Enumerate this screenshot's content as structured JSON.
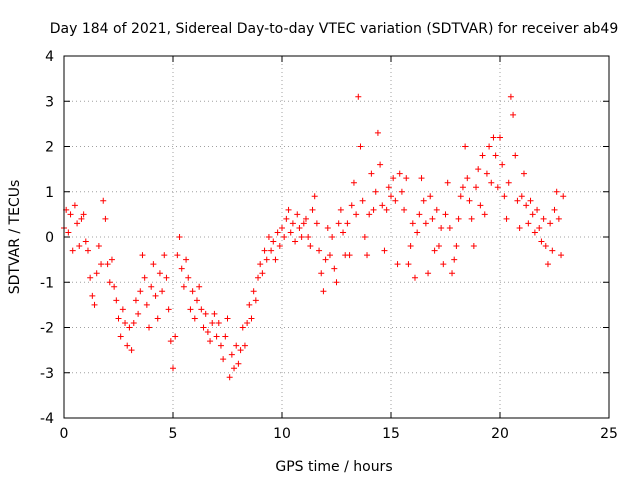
{
  "chart_data": {
    "type": "scatter",
    "title": "Day 184 of 2021, Sidereal Day-to-day VTEC variation (SDTVAR) for receiver ab49",
    "xlabel": "GPS time / hours",
    "ylabel": "SDTVAR / TECUs",
    "xlim": [
      0,
      25
    ],
    "ylim": [
      -4,
      4
    ],
    "xticks": [
      0,
      5,
      10,
      15,
      20,
      25
    ],
    "yticks": [
      -4,
      -3,
      -2,
      -1,
      0,
      1,
      2,
      3,
      4
    ],
    "grid": true,
    "marker": "plus",
    "color": "#ff0000",
    "series": [
      {
        "name": "SDTVAR",
        "points": [
          [
            0.0,
            0.2
          ],
          [
            0.1,
            0.6
          ],
          [
            0.2,
            0.1
          ],
          [
            0.3,
            0.5
          ],
          [
            0.4,
            -0.3
          ],
          [
            0.5,
            0.7
          ],
          [
            0.6,
            0.3
          ],
          [
            0.7,
            -0.2
          ],
          [
            0.8,
            0.4
          ],
          [
            0.9,
            0.5
          ],
          [
            1.0,
            -0.1
          ],
          [
            1.1,
            -0.3
          ],
          [
            1.2,
            -0.9
          ],
          [
            1.3,
            -1.3
          ],
          [
            1.4,
            -1.5
          ],
          [
            1.5,
            -0.8
          ],
          [
            1.6,
            -0.2
          ],
          [
            1.7,
            -0.6
          ],
          [
            1.8,
            0.8
          ],
          [
            1.9,
            0.4
          ],
          [
            2.0,
            -0.6
          ],
          [
            2.1,
            -1.0
          ],
          [
            2.2,
            -0.5
          ],
          [
            2.3,
            -1.1
          ],
          [
            2.4,
            -1.4
          ],
          [
            2.5,
            -1.8
          ],
          [
            2.6,
            -2.2
          ],
          [
            2.7,
            -1.6
          ],
          [
            2.8,
            -1.9
          ],
          [
            2.9,
            -2.4
          ],
          [
            3.0,
            -2.0
          ],
          [
            3.1,
            -2.5
          ],
          [
            3.2,
            -1.9
          ],
          [
            3.3,
            -1.4
          ],
          [
            3.4,
            -1.7
          ],
          [
            3.5,
            -1.2
          ],
          [
            3.6,
            -0.4
          ],
          [
            3.7,
            -0.9
          ],
          [
            3.8,
            -1.5
          ],
          [
            3.9,
            -2.0
          ],
          [
            4.0,
            -1.1
          ],
          [
            4.1,
            -0.6
          ],
          [
            4.2,
            -1.3
          ],
          [
            4.3,
            -1.8
          ],
          [
            4.4,
            -0.8
          ],
          [
            4.5,
            -1.2
          ],
          [
            4.6,
            -0.4
          ],
          [
            4.7,
            -0.9
          ],
          [
            4.8,
            -1.6
          ],
          [
            4.9,
            -2.3
          ],
          [
            5.0,
            -2.9
          ],
          [
            5.1,
            -2.2
          ],
          [
            5.2,
            -0.4
          ],
          [
            5.3,
            0.0
          ],
          [
            5.4,
            -0.7
          ],
          [
            5.5,
            -1.1
          ],
          [
            5.6,
            -0.5
          ],
          [
            5.7,
            -0.9
          ],
          [
            5.8,
            -1.6
          ],
          [
            5.9,
            -1.2
          ],
          [
            6.0,
            -1.8
          ],
          [
            6.1,
            -1.4
          ],
          [
            6.2,
            -1.1
          ],
          [
            6.3,
            -1.6
          ],
          [
            6.4,
            -2.0
          ],
          [
            6.5,
            -1.7
          ],
          [
            6.6,
            -2.1
          ],
          [
            6.7,
            -2.3
          ],
          [
            6.8,
            -1.9
          ],
          [
            6.9,
            -1.7
          ],
          [
            7.0,
            -2.2
          ],
          [
            7.1,
            -1.9
          ],
          [
            7.2,
            -2.4
          ],
          [
            7.3,
            -2.7
          ],
          [
            7.4,
            -2.2
          ],
          [
            7.5,
            -1.8
          ],
          [
            7.6,
            -3.1
          ],
          [
            7.7,
            -2.6
          ],
          [
            7.8,
            -2.9
          ],
          [
            7.9,
            -2.4
          ],
          [
            8.0,
            -2.8
          ],
          [
            8.1,
            -2.5
          ],
          [
            8.2,
            -2.0
          ],
          [
            8.3,
            -2.4
          ],
          [
            8.4,
            -1.9
          ],
          [
            8.5,
            -1.5
          ],
          [
            8.6,
            -1.8
          ],
          [
            8.7,
            -1.2
          ],
          [
            8.8,
            -1.4
          ],
          [
            8.9,
            -0.9
          ],
          [
            9.0,
            -0.6
          ],
          [
            9.1,
            -0.8
          ],
          [
            9.2,
            -0.3
          ],
          [
            9.3,
            -0.5
          ],
          [
            9.4,
            0.0
          ],
          [
            9.5,
            -0.3
          ],
          [
            9.6,
            -0.1
          ],
          [
            9.7,
            -0.5
          ],
          [
            9.8,
            0.1
          ],
          [
            9.9,
            -0.2
          ],
          [
            10.0,
            0.2
          ],
          [
            10.1,
            0.0
          ],
          [
            10.2,
            0.4
          ],
          [
            10.3,
            0.6
          ],
          [
            10.4,
            0.1
          ],
          [
            10.5,
            0.3
          ],
          [
            10.6,
            -0.1
          ],
          [
            10.7,
            0.5
          ],
          [
            10.8,
            0.2
          ],
          [
            10.9,
            0.0
          ],
          [
            11.0,
            0.3
          ],
          [
            11.1,
            0.4
          ],
          [
            11.2,
            0.0
          ],
          [
            11.3,
            -0.2
          ],
          [
            11.4,
            0.6
          ],
          [
            11.5,
            0.9
          ],
          [
            11.6,
            0.3
          ],
          [
            11.7,
            -0.3
          ],
          [
            11.8,
            -0.8
          ],
          [
            11.9,
            -1.2
          ],
          [
            12.0,
            -0.5
          ],
          [
            12.1,
            0.2
          ],
          [
            12.2,
            -0.4
          ],
          [
            12.3,
            0.0
          ],
          [
            12.4,
            -0.7
          ],
          [
            12.5,
            -1.0
          ],
          [
            12.6,
            0.3
          ],
          [
            12.7,
            0.6
          ],
          [
            12.8,
            0.1
          ],
          [
            12.9,
            -0.4
          ],
          [
            13.0,
            0.3
          ],
          [
            13.1,
            -0.4
          ],
          [
            13.2,
            0.7
          ],
          [
            13.3,
            1.2
          ],
          [
            13.4,
            0.5
          ],
          [
            13.5,
            3.1
          ],
          [
            13.6,
            2.0
          ],
          [
            13.7,
            0.8
          ],
          [
            13.8,
            0.0
          ],
          [
            13.9,
            -0.4
          ],
          [
            14.0,
            0.5
          ],
          [
            14.1,
            1.4
          ],
          [
            14.2,
            0.6
          ],
          [
            14.3,
            1.0
          ],
          [
            14.4,
            2.3
          ],
          [
            14.5,
            1.6
          ],
          [
            14.6,
            0.7
          ],
          [
            14.7,
            -0.3
          ],
          [
            14.8,
            0.6
          ],
          [
            14.9,
            1.1
          ],
          [
            15.0,
            0.9
          ],
          [
            15.1,
            1.3
          ],
          [
            15.2,
            0.8
          ],
          [
            15.3,
            -0.6
          ],
          [
            15.4,
            1.4
          ],
          [
            15.5,
            1.0
          ],
          [
            15.6,
            0.6
          ],
          [
            15.7,
            1.3
          ],
          [
            15.8,
            -0.6
          ],
          [
            15.9,
            -0.2
          ],
          [
            16.0,
            0.3
          ],
          [
            16.1,
            -0.9
          ],
          [
            16.2,
            0.1
          ],
          [
            16.3,
            0.5
          ],
          [
            16.4,
            1.3
          ],
          [
            16.5,
            0.8
          ],
          [
            16.6,
            0.3
          ],
          [
            16.7,
            -0.8
          ],
          [
            16.8,
            0.9
          ],
          [
            16.9,
            0.4
          ],
          [
            17.0,
            -0.3
          ],
          [
            17.1,
            0.6
          ],
          [
            17.2,
            -0.2
          ],
          [
            17.3,
            0.2
          ],
          [
            17.4,
            -0.6
          ],
          [
            17.5,
            0.5
          ],
          [
            17.6,
            1.2
          ],
          [
            17.7,
            0.2
          ],
          [
            17.8,
            -0.8
          ],
          [
            17.9,
            -0.5
          ],
          [
            18.0,
            -0.2
          ],
          [
            18.1,
            0.4
          ],
          [
            18.2,
            0.9
          ],
          [
            18.3,
            1.1
          ],
          [
            18.4,
            2.0
          ],
          [
            18.5,
            1.3
          ],
          [
            18.6,
            0.8
          ],
          [
            18.7,
            0.4
          ],
          [
            18.8,
            -0.2
          ],
          [
            18.9,
            1.1
          ],
          [
            19.0,
            1.5
          ],
          [
            19.1,
            0.7
          ],
          [
            19.2,
            1.8
          ],
          [
            19.3,
            0.5
          ],
          [
            19.4,
            1.4
          ],
          [
            19.5,
            2.0
          ],
          [
            19.6,
            1.2
          ],
          [
            19.7,
            2.2
          ],
          [
            19.8,
            1.8
          ],
          [
            19.9,
            1.1
          ],
          [
            20.0,
            2.2
          ],
          [
            20.1,
            1.6
          ],
          [
            20.2,
            0.9
          ],
          [
            20.3,
            0.4
          ],
          [
            20.4,
            1.2
          ],
          [
            20.5,
            3.1
          ],
          [
            20.6,
            2.7
          ],
          [
            20.7,
            1.8
          ],
          [
            20.8,
            0.8
          ],
          [
            20.9,
            0.2
          ],
          [
            21.0,
            0.9
          ],
          [
            21.1,
            1.4
          ],
          [
            21.2,
            0.7
          ],
          [
            21.3,
            0.3
          ],
          [
            21.4,
            0.8
          ],
          [
            21.5,
            0.5
          ],
          [
            21.6,
            0.1
          ],
          [
            21.7,
            0.6
          ],
          [
            21.8,
            0.2
          ],
          [
            21.9,
            -0.1
          ],
          [
            22.0,
            0.4
          ],
          [
            22.1,
            -0.2
          ],
          [
            22.2,
            -0.6
          ],
          [
            22.3,
            0.3
          ],
          [
            22.4,
            -0.3
          ],
          [
            22.5,
            0.6
          ],
          [
            22.6,
            1.0
          ],
          [
            22.7,
            0.4
          ],
          [
            22.8,
            -0.4
          ],
          [
            22.9,
            0.9
          ]
        ]
      }
    ]
  }
}
